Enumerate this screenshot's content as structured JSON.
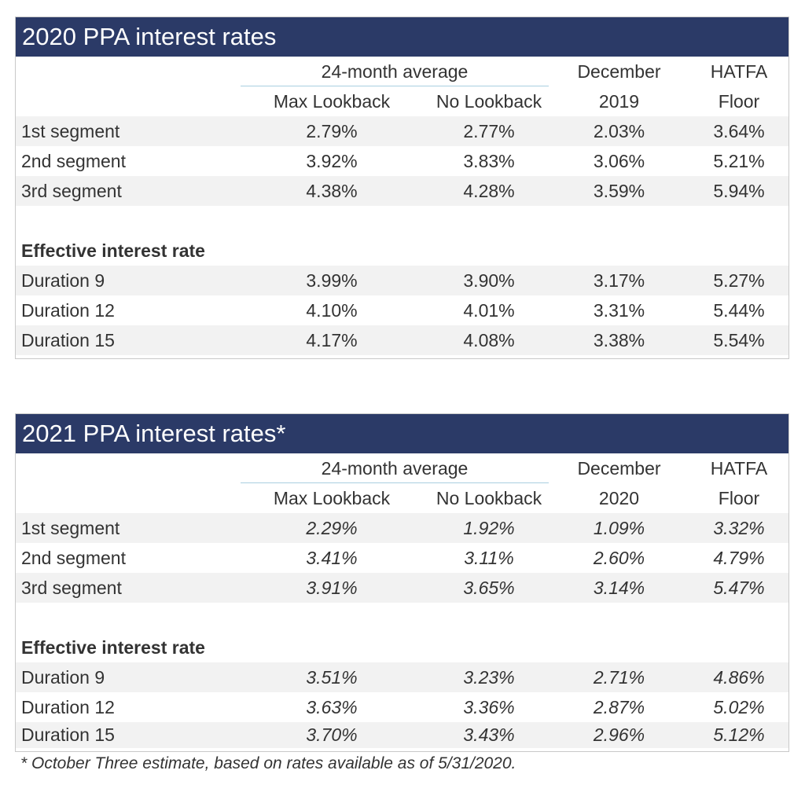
{
  "shared": {
    "group_header": "24-month average",
    "col_max": "Max Lookback",
    "col_no": "No Lookback",
    "col_dec": "December",
    "col_hatfa_1": "HATFA",
    "col_hatfa_2": "Floor",
    "section_label": "Effective interest rate"
  },
  "t2020": {
    "title": "2020 PPA interest rates",
    "dec_year": "2019",
    "segments": [
      {
        "label": "1st segment",
        "max": "2.79%",
        "no": "2.77%",
        "dec": "2.03%",
        "hatfa": "3.64%"
      },
      {
        "label": "2nd segment",
        "max": "3.92%",
        "no": "3.83%",
        "dec": "3.06%",
        "hatfa": "5.21%"
      },
      {
        "label": "3rd segment",
        "max": "4.38%",
        "no": "4.28%",
        "dec": "3.59%",
        "hatfa": "5.94%"
      }
    ],
    "durations": [
      {
        "label": "Duration 9",
        "max": "3.99%",
        "no": "3.90%",
        "dec": "3.17%",
        "hatfa": "5.27%"
      },
      {
        "label": "Duration 12",
        "max": "4.10%",
        "no": "4.01%",
        "dec": "3.31%",
        "hatfa": "5.44%"
      },
      {
        "label": "Duration 15",
        "max": "4.17%",
        "no": "4.08%",
        "dec": "3.38%",
        "hatfa": "5.54%"
      }
    ]
  },
  "t2021": {
    "title": "2021 PPA interest rates*",
    "dec_year": "2020",
    "segments": [
      {
        "label": "1st segment",
        "max": "2.29%",
        "no": "1.92%",
        "dec": "1.09%",
        "hatfa": "3.32%"
      },
      {
        "label": "2nd segment",
        "max": "3.41%",
        "no": "3.11%",
        "dec": "2.60%",
        "hatfa": "4.79%"
      },
      {
        "label": "3rd segment",
        "max": "3.91%",
        "no": "3.65%",
        "dec": "3.14%",
        "hatfa": "5.47%"
      }
    ],
    "durations": [
      {
        "label": "Duration 9",
        "max": "3.51%",
        "no": "3.23%",
        "dec": "2.71%",
        "hatfa": "4.86%"
      },
      {
        "label": "Duration 12",
        "max": "3.63%",
        "no": "3.36%",
        "dec": "2.87%",
        "hatfa": "5.02%"
      },
      {
        "label": "Duration 15",
        "max": "3.70%",
        "no": "3.43%",
        "dec": "2.96%",
        "hatfa": "5.12%"
      }
    ]
  },
  "footnote": "* October Three estimate, based on rates available as of 5/31/2020."
}
